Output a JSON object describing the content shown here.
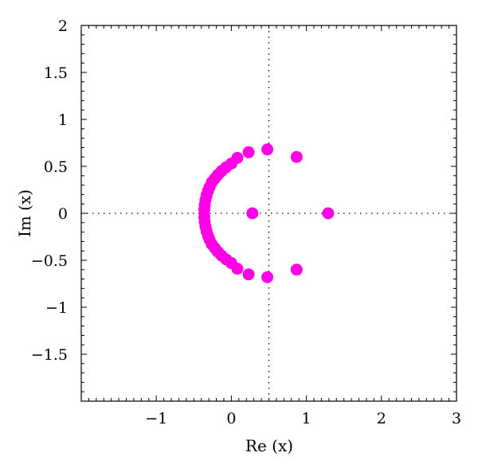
{
  "chart_data": {
    "type": "scatter",
    "xlabel": "Re (x)",
    "ylabel": "Im (x)",
    "xlim": [
      -2,
      3
    ],
    "ylim": [
      -2,
      2
    ],
    "x_ticks": [
      -1,
      0,
      1,
      2,
      3
    ],
    "x_tick_labels": [
      "−1",
      "0",
      "1",
      "2",
      "3"
    ],
    "y_ticks": [
      2,
      1.5,
      1,
      0.5,
      0,
      -0.5,
      -1,
      -1.5
    ],
    "y_tick_labels": [
      "2",
      "1.5",
      "1",
      "0.5",
      "0",
      "−0.5",
      "−1",
      "−1.5"
    ],
    "reference_lines": {
      "x": 0.5,
      "y": 0,
      "style": "dotted"
    },
    "grid": false,
    "marker_color": "#ff00e6",
    "series": [
      {
        "points": [
          [
            1.29,
            0.0
          ],
          [
            0.28,
            0.0
          ],
          [
            0.87,
            0.6
          ],
          [
            0.87,
            -0.6
          ],
          [
            0.48,
            0.68
          ],
          [
            0.48,
            -0.68
          ],
          [
            0.23,
            0.65
          ],
          [
            0.23,
            -0.65
          ],
          [
            0.08,
            0.59
          ],
          [
            0.08,
            -0.59
          ],
          [
            0.0,
            0.53
          ],
          [
            0.0,
            -0.53
          ],
          [
            -0.07,
            0.49
          ],
          [
            -0.07,
            -0.49
          ],
          [
            -0.13,
            0.45
          ],
          [
            -0.13,
            -0.45
          ],
          [
            -0.18,
            0.41
          ],
          [
            -0.18,
            -0.41
          ],
          [
            -0.22,
            0.37
          ],
          [
            -0.22,
            -0.37
          ],
          [
            -0.26,
            0.33
          ],
          [
            -0.26,
            -0.33
          ],
          [
            -0.29,
            0.28
          ],
          [
            -0.29,
            -0.28
          ],
          [
            -0.31,
            0.24
          ],
          [
            -0.31,
            -0.24
          ],
          [
            -0.33,
            0.19
          ],
          [
            -0.33,
            -0.19
          ],
          [
            -0.345,
            0.14
          ],
          [
            -0.345,
            -0.14
          ],
          [
            -0.355,
            0.09
          ],
          [
            -0.355,
            -0.09
          ],
          [
            -0.36,
            0.04
          ],
          [
            -0.36,
            -0.04
          ]
        ]
      }
    ]
  }
}
